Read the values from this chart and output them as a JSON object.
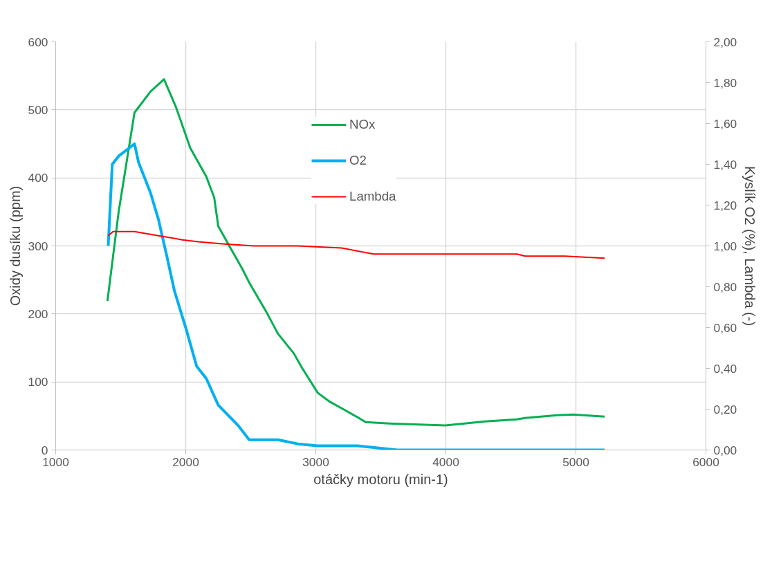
{
  "chart_data": {
    "type": "line",
    "xlabel": "otáčky motoru (min-1)",
    "ylabel": "Oxidy dusíku (ppm)",
    "y2label": "Kyslík O2 (%), Lambda (-)",
    "xlim": [
      1000,
      6000
    ],
    "xticks": [
      1000,
      2000,
      3000,
      4000,
      5000,
      6000
    ],
    "ylim": [
      0,
      600
    ],
    "yticks": [
      0,
      100,
      200,
      300,
      400,
      500,
      600
    ],
    "y2lim": [
      0,
      2
    ],
    "y2ticks": [
      {
        "value": 0,
        "label": "0,00"
      },
      {
        "value": 0.2,
        "label": "0,20"
      },
      {
        "value": 0.4,
        "label": "0,40"
      },
      {
        "value": 0.6,
        "label": "0,60"
      },
      {
        "value": 0.8,
        "label": "0,80"
      },
      {
        "value": 1.0,
        "label": "1,00"
      },
      {
        "value": 1.2,
        "label": "1,20"
      },
      {
        "value": 1.4,
        "label": "1,40"
      },
      {
        "value": 1.6,
        "label": "1,60"
      },
      {
        "value": 1.8,
        "label": "1,80"
      },
      {
        "value": 2.0,
        "label": "2,00"
      }
    ],
    "grid": true,
    "legend": "top",
    "marker": "none",
    "line_style": "solid",
    "series": [
      {
        "name": "NOx",
        "color": "#00b050",
        "x": [
          1398,
          1484,
          1606,
          1729,
          1833,
          1925,
          2035,
          2158,
          2219,
          2250,
          2341,
          2433,
          2494,
          2617,
          2709,
          2831,
          2893,
          3015,
          3107,
          3230,
          3322,
          3383,
          3567,
          3996,
          4302,
          4547,
          4608,
          4731,
          4853,
          4976,
          5221
        ],
        "values": [
          219,
          350,
          496,
          527,
          545,
          504,
          444,
          402,
          371,
          329,
          298,
          267,
          244,
          204,
          171,
          142,
          121,
          84,
          71,
          58,
          48,
          41,
          39,
          36,
          42,
          45,
          47,
          49,
          51,
          52,
          49
        ]
      },
      {
        "name": "O2",
        "color": "#00b0f0",
        "axis": "y2",
        "x": [
          1404,
          1435,
          1484,
          1606,
          1637,
          1729,
          1790,
          1851,
          1913,
          2004,
          2084,
          2158,
          2250,
          2403,
          2488,
          2709,
          2862,
          3015,
          3322,
          3628,
          5221
        ],
        "values": [
          1.0,
          1.4,
          1.44,
          1.5,
          1.41,
          1.26,
          1.13,
          0.96,
          0.78,
          0.59,
          0.41,
          0.35,
          0.22,
          0.12,
          0.05,
          0.05,
          0.03,
          0.02,
          0.02,
          0,
          0
        ]
      },
      {
        "name": "Lambda",
        "color": "#ff0000",
        "axis": "y2",
        "x": [
          1404,
          1441,
          1606,
          1790,
          1974,
          2096,
          2280,
          2525,
          2862,
          3199,
          3444,
          3689,
          4547,
          4608,
          4914,
          5221
        ],
        "values": [
          1.05,
          1.07,
          1.07,
          1.05,
          1.03,
          1.02,
          1.01,
          1.0,
          1.0,
          0.99,
          0.96,
          0.96,
          0.96,
          0.95,
          0.95,
          0.94
        ]
      }
    ]
  }
}
